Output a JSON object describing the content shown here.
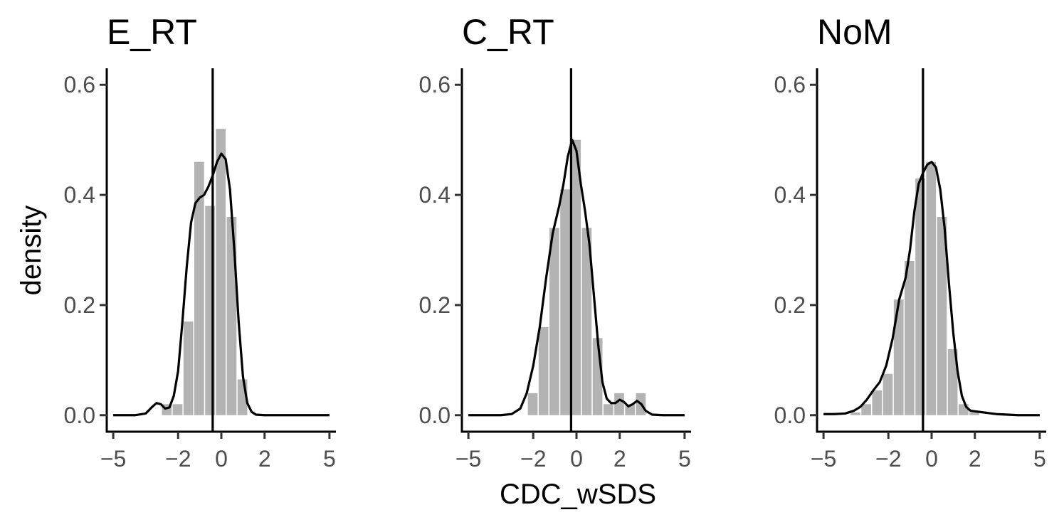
{
  "chart_data": [
    {
      "type": "histogram",
      "title": "E_RT",
      "xlabel": "",
      "ylabel": "density",
      "xlim": [
        -5.3,
        5.3
      ],
      "ylim": [
        -0.03,
        0.63
      ],
      "xticks": [
        -5,
        -2,
        0,
        2,
        5
      ],
      "xtick_labels": [
        "−5",
        "−2",
        "0",
        "2",
        "5"
      ],
      "yticks": [
        0.0,
        0.2,
        0.4,
        0.6
      ],
      "ytick_labels": [
        "0.0",
        "0.2",
        "0.4",
        "0.6"
      ],
      "vline": -0.4,
      "bar_width": 0.5,
      "bar_color": "#b3b3b3",
      "bars": [
        {
          "x": -2.5,
          "y": 0.02
        },
        {
          "x": -2.0,
          "y": 0.02
        },
        {
          "x": -1.5,
          "y": 0.17
        },
        {
          "x": -1.0,
          "y": 0.46
        },
        {
          "x": -0.5,
          "y": 0.38
        },
        {
          "x": 0.0,
          "y": 0.52
        },
        {
          "x": 0.5,
          "y": 0.36
        },
        {
          "x": 1.0,
          "y": 0.065
        }
      ],
      "density": [
        [
          -5.0,
          0.0
        ],
        [
          -4.0,
          0.0
        ],
        [
          -3.5,
          0.003
        ],
        [
          -3.2,
          0.015
        ],
        [
          -3.0,
          0.022
        ],
        [
          -2.8,
          0.02
        ],
        [
          -2.6,
          0.012
        ],
        [
          -2.4,
          0.014
        ],
        [
          -2.2,
          0.035
        ],
        [
          -2.0,
          0.08
        ],
        [
          -1.8,
          0.17
        ],
        [
          -1.6,
          0.27
        ],
        [
          -1.4,
          0.35
        ],
        [
          -1.2,
          0.385
        ],
        [
          -1.0,
          0.395
        ],
        [
          -0.8,
          0.4
        ],
        [
          -0.6,
          0.415
        ],
        [
          -0.4,
          0.435
        ],
        [
          -0.2,
          0.46
        ],
        [
          0.0,
          0.475
        ],
        [
          0.2,
          0.465
        ],
        [
          0.4,
          0.41
        ],
        [
          0.6,
          0.3
        ],
        [
          0.8,
          0.17
        ],
        [
          1.0,
          0.07
        ],
        [
          1.2,
          0.022
        ],
        [
          1.4,
          0.006
        ],
        [
          1.6,
          0.001
        ],
        [
          2.0,
          0.0
        ],
        [
          3.0,
          0.0
        ],
        [
          5.0,
          0.0
        ]
      ]
    },
    {
      "type": "histogram",
      "title": "C_RT",
      "xlabel": "CDC_wSDS",
      "ylabel": "",
      "xlim": [
        -5.3,
        5.3
      ],
      "ylim": [
        -0.03,
        0.63
      ],
      "xticks": [
        -5,
        -2,
        0,
        2,
        5
      ],
      "xtick_labels": [
        "−5",
        "−2",
        "0",
        "2",
        "5"
      ],
      "yticks": [
        0.0,
        0.2,
        0.4,
        0.6
      ],
      "ytick_labels": [
        "0.0",
        "0.2",
        "0.4",
        "0.6"
      ],
      "vline": -0.25,
      "bar_width": 0.5,
      "bar_color": "#b3b3b3",
      "bars": [
        {
          "x": -2.0,
          "y": 0.04
        },
        {
          "x": -1.5,
          "y": 0.16
        },
        {
          "x": -1.0,
          "y": 0.34
        },
        {
          "x": -0.5,
          "y": 0.41
        },
        {
          "x": 0.0,
          "y": 0.5
        },
        {
          "x": 0.5,
          "y": 0.34
        },
        {
          "x": 1.0,
          "y": 0.14
        },
        {
          "x": 1.5,
          "y": 0.02
        },
        {
          "x": 2.0,
          "y": 0.04
        },
        {
          "x": 2.5,
          "y": 0.02
        },
        {
          "x": 3.0,
          "y": 0.04
        }
      ],
      "density": [
        [
          -5.0,
          0.0
        ],
        [
          -3.5,
          0.0
        ],
        [
          -3.0,
          0.002
        ],
        [
          -2.6,
          0.012
        ],
        [
          -2.3,
          0.04
        ],
        [
          -2.0,
          0.09
        ],
        [
          -1.7,
          0.16
        ],
        [
          -1.4,
          0.25
        ],
        [
          -1.1,
          0.33
        ],
        [
          -0.8,
          0.38
        ],
        [
          -0.6,
          0.42
        ],
        [
          -0.4,
          0.47
        ],
        [
          -0.2,
          0.5
        ],
        [
          0.0,
          0.48
        ],
        [
          0.2,
          0.42
        ],
        [
          0.4,
          0.37
        ],
        [
          0.6,
          0.31
        ],
        [
          0.8,
          0.22
        ],
        [
          1.0,
          0.13
        ],
        [
          1.2,
          0.06
        ],
        [
          1.4,
          0.03
        ],
        [
          1.6,
          0.022
        ],
        [
          1.8,
          0.022
        ],
        [
          2.0,
          0.028
        ],
        [
          2.2,
          0.024
        ],
        [
          2.4,
          0.016
        ],
        [
          2.6,
          0.02
        ],
        [
          2.8,
          0.026
        ],
        [
          3.0,
          0.02
        ],
        [
          3.2,
          0.008
        ],
        [
          3.5,
          0.001
        ],
        [
          4.0,
          0.0
        ],
        [
          5.0,
          0.0
        ]
      ]
    },
    {
      "type": "histogram",
      "title": "NoM",
      "xlabel": "",
      "ylabel": "",
      "xlim": [
        -5.3,
        5.3
      ],
      "ylim": [
        -0.03,
        0.63
      ],
      "xticks": [
        -5,
        -2,
        0,
        2,
        5
      ],
      "xtick_labels": [
        "−5",
        "−2",
        "0",
        "2",
        "5"
      ],
      "yticks": [
        0.0,
        0.2,
        0.4,
        0.6
      ],
      "ytick_labels": [
        "0.0",
        "0.2",
        "0.4",
        "0.6"
      ],
      "vline": -0.4,
      "bar_width": 0.5,
      "bar_color": "#b3b3b3",
      "bars": [
        {
          "x": -3.5,
          "y": 0.005
        },
        {
          "x": -3.0,
          "y": 0.02
        },
        {
          "x": -2.5,
          "y": 0.045
        },
        {
          "x": -2.0,
          "y": 0.075
        },
        {
          "x": -1.5,
          "y": 0.21
        },
        {
          "x": -1.0,
          "y": 0.28
        },
        {
          "x": -0.5,
          "y": 0.43
        },
        {
          "x": 0.0,
          "y": 0.46
        },
        {
          "x": 0.5,
          "y": 0.36
        },
        {
          "x": 1.0,
          "y": 0.12
        },
        {
          "x": 1.5,
          "y": 0.02
        },
        {
          "x": 2.0,
          "y": 0.005
        }
      ],
      "density": [
        [
          -5.0,
          0.002
        ],
        [
          -4.5,
          0.002
        ],
        [
          -4.0,
          0.003
        ],
        [
          -3.6,
          0.008
        ],
        [
          -3.3,
          0.015
        ],
        [
          -3.0,
          0.028
        ],
        [
          -2.7,
          0.045
        ],
        [
          -2.4,
          0.06
        ],
        [
          -2.1,
          0.09
        ],
        [
          -1.8,
          0.14
        ],
        [
          -1.5,
          0.21
        ],
        [
          -1.2,
          0.25
        ],
        [
          -1.0,
          0.3
        ],
        [
          -0.8,
          0.37
        ],
        [
          -0.6,
          0.42
        ],
        [
          -0.4,
          0.44
        ],
        [
          -0.2,
          0.455
        ],
        [
          0.0,
          0.46
        ],
        [
          0.2,
          0.45
        ],
        [
          0.4,
          0.41
        ],
        [
          0.6,
          0.34
        ],
        [
          0.8,
          0.24
        ],
        [
          1.0,
          0.15
        ],
        [
          1.2,
          0.08
        ],
        [
          1.4,
          0.035
        ],
        [
          1.6,
          0.015
        ],
        [
          1.8,
          0.008
        ],
        [
          2.2,
          0.006
        ],
        [
          2.6,
          0.004
        ],
        [
          3.0,
          0.002
        ],
        [
          4.0,
          0.0
        ],
        [
          5.0,
          0.0
        ]
      ]
    }
  ]
}
